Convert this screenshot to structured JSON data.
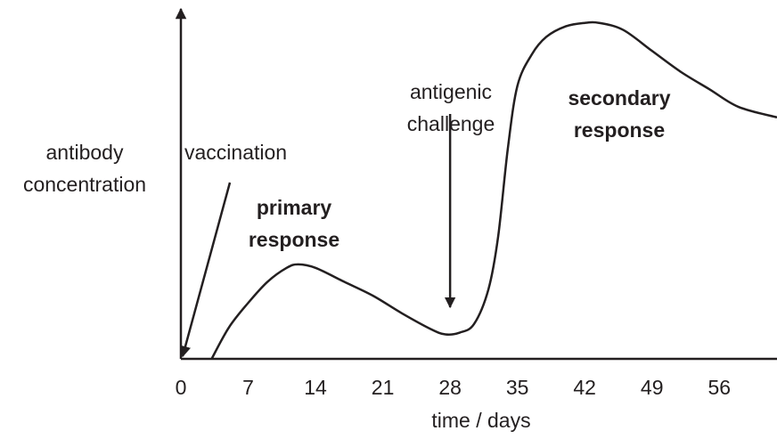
{
  "chart_data": {
    "type": "line",
    "ylabel": [
      "antibody",
      "concentration"
    ],
    "xlabel": "time / days",
    "x": [
      3.2,
      5,
      7,
      9,
      11,
      12.2,
      14,
      17,
      20,
      23,
      26,
      27.5,
      29,
      30.5,
      32,
      33,
      34,
      35,
      36.5,
      38,
      40,
      42,
      43.5,
      46,
      49,
      52,
      55,
      58,
      62
    ],
    "series": [
      {
        "color": "#231f20",
        "values": [
          0,
          9,
          16,
          22,
          26,
          27,
          26,
          22,
          18,
          13,
          8.5,
          7,
          7.5,
          10,
          20,
          35,
          60,
          78,
          87,
          92,
          95,
          96,
          96,
          94,
          88,
          82,
          77,
          72,
          69
        ]
      }
    ],
    "xlim": [
      0,
      62
    ],
    "xticks": [
      0,
      7,
      14,
      21,
      28,
      35,
      42,
      49,
      56
    ],
    "ylim": [
      0,
      100
    ],
    "annotations": [
      {
        "text": [
          "vaccination"
        ],
        "x": 0
      },
      {
        "text": [
          "antigenic",
          "challenge"
        ],
        "x": 28
      },
      {
        "text": [
          "primary",
          "response"
        ]
      },
      {
        "text": [
          "secondary",
          "response"
        ]
      }
    ]
  }
}
